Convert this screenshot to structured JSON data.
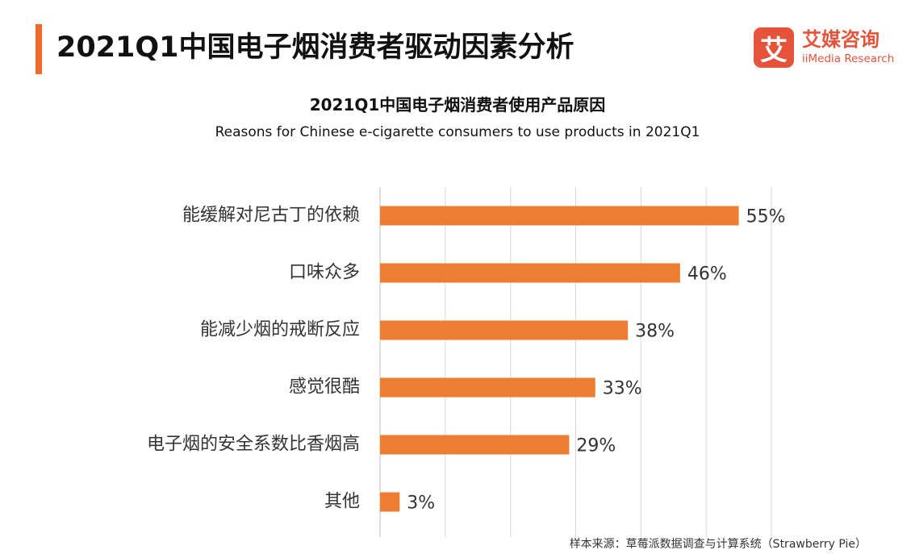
{
  "header": {
    "title": "2021Q1中国电子烟消费者驱动因素分析",
    "accent_color": "#f06a2e"
  },
  "logo": {
    "mark": "艾",
    "name_cn": "艾媒咨询",
    "name_en": "iiMedia Research",
    "color": "#e5533b"
  },
  "chart_data": {
    "type": "bar",
    "orientation": "horizontal",
    "title": "2021Q1中国电子烟消费者使用产品原因",
    "subtitle": "Reasons for Chinese e-cigarette consumers to use products in 2021Q1",
    "categories": [
      "能缓解对尼古丁的依赖",
      "口味众多",
      "能减少烟的戒断反应",
      "感觉很酷",
      "电子烟的安全系数比香烟高",
      "其他"
    ],
    "values": [
      55,
      46,
      38,
      33,
      29,
      3
    ],
    "value_labels": [
      "55%",
      "46%",
      "38%",
      "33%",
      "29%",
      "3%"
    ],
    "xlim": [
      0,
      60
    ],
    "grid": true,
    "bar_color": "#ed7d31"
  },
  "footer": {
    "source": "样本来源：草莓派数据调查与计算系统（Strawberry Pie）"
  }
}
